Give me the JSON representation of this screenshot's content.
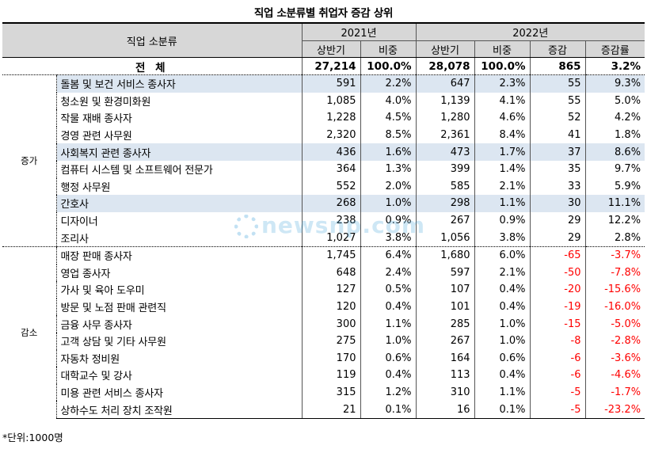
{
  "title": "직업 소분류별 취업자 증감 상위",
  "header": {
    "occupation_label": "직업 소분류",
    "year_2021": "2021년",
    "year_2022": "2022년",
    "sub_2021": [
      "상반기",
      "비중"
    ],
    "sub_2022": [
      "상반기",
      "비중",
      "증감",
      "증감률"
    ]
  },
  "total": {
    "label": "전 체",
    "h1_2021": "27,214",
    "share_2021": "100.0%",
    "h1_2022": "28,078",
    "share_2022": "100.0%",
    "change": "865",
    "rate": "3.2%"
  },
  "groups": {
    "increase_label": "증가",
    "decrease_label": "감소"
  },
  "increase_rows": [
    {
      "name": "돌봄 및 보건 서비스 종사자",
      "a": "591",
      "b": "2.2%",
      "c": "647",
      "d": "2.3%",
      "e": "55",
      "f": "9.3%",
      "hl": true
    },
    {
      "name": "청소원 및 환경미화원",
      "a": "1,085",
      "b": "4.0%",
      "c": "1,139",
      "d": "4.1%",
      "e": "55",
      "f": "5.0%",
      "hl": false
    },
    {
      "name": "작물 재배 종사자",
      "a": "1,228",
      "b": "4.5%",
      "c": "1,280",
      "d": "4.6%",
      "e": "52",
      "f": "4.2%",
      "hl": false
    },
    {
      "name": "경영 관련 사무원",
      "a": "2,320",
      "b": "8.5%",
      "c": "2,361",
      "d": "8.4%",
      "e": "41",
      "f": "1.8%",
      "hl": false
    },
    {
      "name": "사회복지 관련 종사자",
      "a": "436",
      "b": "1.6%",
      "c": "473",
      "d": "1.7%",
      "e": "37",
      "f": "8.6%",
      "hl": true
    },
    {
      "name": "컴퓨터 시스템 및 소프트웨어 전문가",
      "a": "364",
      "b": "1.3%",
      "c": "399",
      "d": "1.4%",
      "e": "35",
      "f": "9.7%",
      "hl": false
    },
    {
      "name": "행정 사무원",
      "a": "552",
      "b": "2.0%",
      "c": "585",
      "d": "2.1%",
      "e": "33",
      "f": "5.9%",
      "hl": false
    },
    {
      "name": "간호사",
      "a": "268",
      "b": "1.0%",
      "c": "298",
      "d": "1.1%",
      "e": "30",
      "f": "11.1%",
      "hl": true
    },
    {
      "name": "디자이너",
      "a": "238",
      "b": "0.9%",
      "c": "267",
      "d": "0.9%",
      "e": "29",
      "f": "12.2%",
      "hl": false
    },
    {
      "name": "조리사",
      "a": "1,027",
      "b": "3.8%",
      "c": "1,056",
      "d": "3.8%",
      "e": "29",
      "f": "2.8%",
      "hl": false
    }
  ],
  "decrease_rows": [
    {
      "name": "매장 판매 종사자",
      "a": "1,745",
      "b": "6.4%",
      "c": "1,680",
      "d": "6.0%",
      "e": "-65",
      "f": "-3.7%",
      "hl": false
    },
    {
      "name": "영업 종사자",
      "a": "648",
      "b": "2.4%",
      "c": "597",
      "d": "2.1%",
      "e": "-50",
      "f": "-7.8%",
      "hl": false
    },
    {
      "name": "가사 및 육아 도우미",
      "a": "127",
      "b": "0.5%",
      "c": "107",
      "d": "0.4%",
      "e": "-20",
      "f": "-15.6%",
      "hl": false
    },
    {
      "name": "방문 및 노점 판매 관련직",
      "a": "120",
      "b": "0.4%",
      "c": "101",
      "d": "0.4%",
      "e": "-19",
      "f": "-16.0%",
      "hl": false
    },
    {
      "name": "금융 사무 종사자",
      "a": "300",
      "b": "1.1%",
      "c": "285",
      "d": "1.0%",
      "e": "-15",
      "f": "-5.0%",
      "hl": false
    },
    {
      "name": "고객 상담 및 기타 사무원",
      "a": "275",
      "b": "1.0%",
      "c": "267",
      "d": "1.0%",
      "e": "-8",
      "f": "-2.8%",
      "hl": false
    },
    {
      "name": "자동차 정비원",
      "a": "170",
      "b": "0.6%",
      "c": "164",
      "d": "0.6%",
      "e": "-6",
      "f": "-3.6%",
      "hl": false
    },
    {
      "name": "대학교수 및 강사",
      "a": "119",
      "b": "0.4%",
      "c": "113",
      "d": "0.4%",
      "e": "-6",
      "f": "-4.6%",
      "hl": false
    },
    {
      "name": "미용 관련 서비스 종사자",
      "a": "315",
      "b": "1.2%",
      "c": "310",
      "d": "1.1%",
      "e": "-5",
      "f": "-1.7%",
      "hl": false
    },
    {
      "name": "상하수도 처리 장치 조작원",
      "a": "21",
      "b": "0.1%",
      "c": "16",
      "d": "0.1%",
      "e": "-5",
      "f": "-23.2%",
      "hl": false
    }
  ],
  "watermark": "newsnp.com",
  "footnote": "*단위:1000명",
  "colors": {
    "highlight": "#dce6f1",
    "header_bg": "#d7d7d7",
    "negative": "#ff0000"
  }
}
